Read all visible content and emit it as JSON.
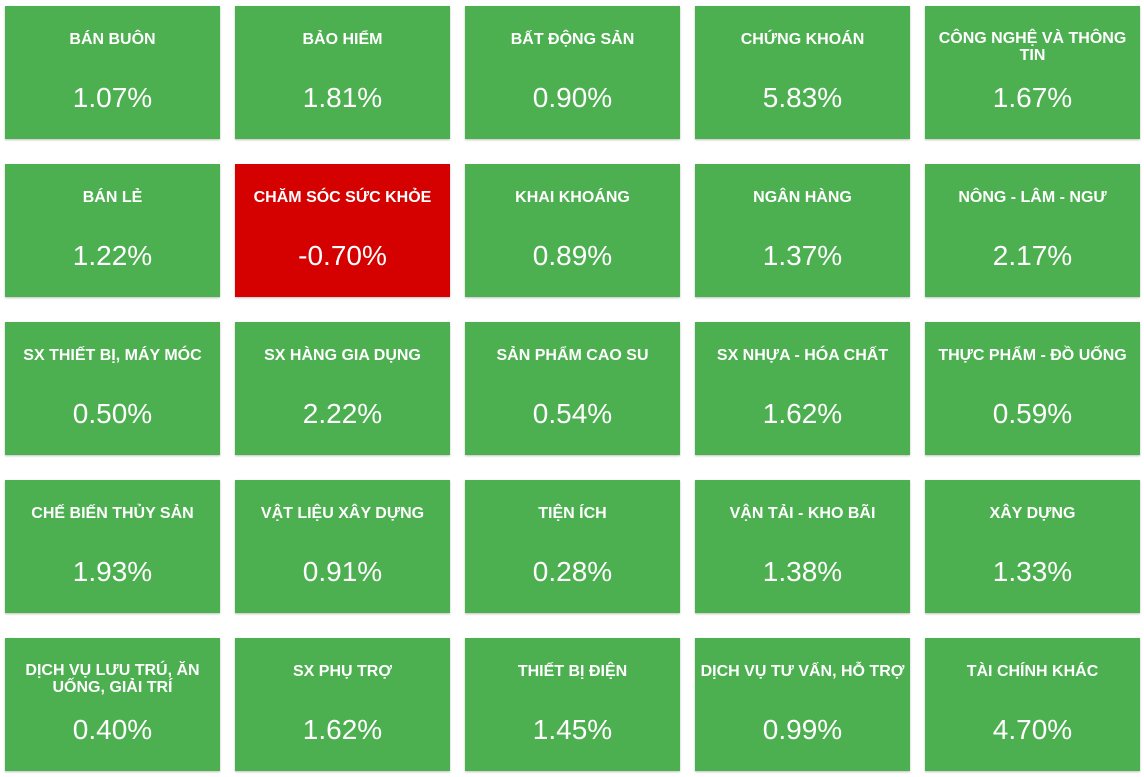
{
  "colors": {
    "positive": "#4caf50",
    "negative": "#d50000",
    "text": "#ffffff"
  },
  "sectors": [
    {
      "name": "BÁN BUÔN",
      "change": "1.07%",
      "status": "positive"
    },
    {
      "name": "BẢO HIỂM",
      "change": "1.81%",
      "status": "positive"
    },
    {
      "name": "BẤT ĐỘNG SẢN",
      "change": "0.90%",
      "status": "positive"
    },
    {
      "name": "CHỨNG KHOÁN",
      "change": "5.83%",
      "status": "positive"
    },
    {
      "name": "CÔNG NGHỆ VÀ THÔNG TIN",
      "change": "1.67%",
      "status": "positive"
    },
    {
      "name": "BÁN LẺ",
      "change": "1.22%",
      "status": "positive"
    },
    {
      "name": "CHĂM SÓC SỨC KHỎE",
      "change": "-0.70%",
      "status": "negative"
    },
    {
      "name": "KHAI KHOÁNG",
      "change": "0.89%",
      "status": "positive"
    },
    {
      "name": "NGÂN HÀNG",
      "change": "1.37%",
      "status": "positive"
    },
    {
      "name": "NÔNG - LÂM - NGƯ",
      "change": "2.17%",
      "status": "positive"
    },
    {
      "name": "SX THIẾT BỊ, MÁY MÓC",
      "change": "0.50%",
      "status": "positive"
    },
    {
      "name": "SX HÀNG GIA DỤNG",
      "change": "2.22%",
      "status": "positive"
    },
    {
      "name": "SẢN PHẨM CAO SU",
      "change": "0.54%",
      "status": "positive"
    },
    {
      "name": "SX NHỰA - HÓA CHẤT",
      "change": "1.62%",
      "status": "positive"
    },
    {
      "name": "THỰC PHẨM - ĐỒ UỐNG",
      "change": "0.59%",
      "status": "positive"
    },
    {
      "name": "CHẾ BIẾN THỦY SẢN",
      "change": "1.93%",
      "status": "positive"
    },
    {
      "name": "VẬT LIỆU XÂY DỰNG",
      "change": "0.91%",
      "status": "positive"
    },
    {
      "name": "TIỆN ÍCH",
      "change": "0.28%",
      "status": "positive"
    },
    {
      "name": "VẬN TẢI - KHO BÃI",
      "change": "1.38%",
      "status": "positive"
    },
    {
      "name": "XÂY DỰNG",
      "change": "1.33%",
      "status": "positive"
    },
    {
      "name": "DỊCH VỤ LƯU TRÚ, ĂN UỐNG, GIẢI TRÍ",
      "change": "0.40%",
      "status": "positive"
    },
    {
      "name": "SX PHỤ TRỢ",
      "change": "1.62%",
      "status": "positive"
    },
    {
      "name": "THIẾT BỊ ĐIỆN",
      "change": "1.45%",
      "status": "positive"
    },
    {
      "name": "DỊCH VỤ TƯ VẤN, HỖ TRỢ",
      "change": "0.99%",
      "status": "positive"
    },
    {
      "name": "TÀI CHÍNH KHÁC",
      "change": "4.70%",
      "status": "positive"
    }
  ]
}
